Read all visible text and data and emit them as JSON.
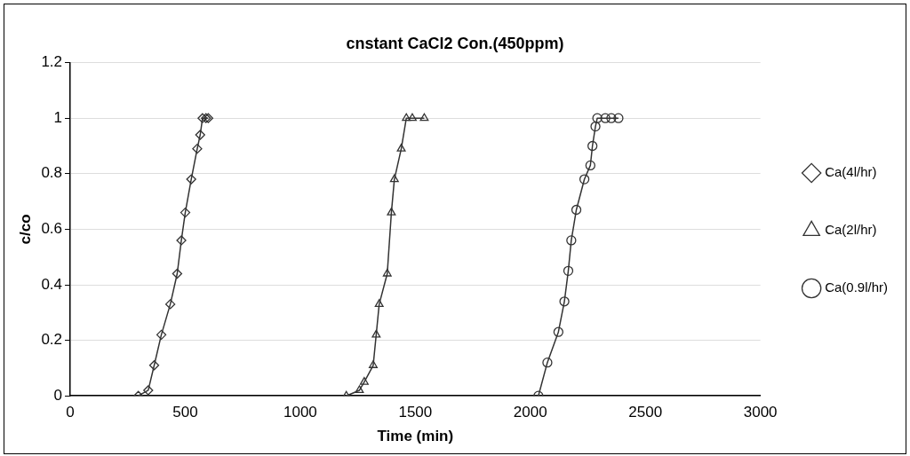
{
  "chart_data": {
    "type": "line",
    "title": "cnstant CaCl2 Con.(450ppm)",
    "xlabel": "Time (min)",
    "ylabel": "c/co",
    "xlim": [
      0,
      3000
    ],
    "xticks": [
      0,
      500,
      1000,
      1500,
      2000,
      2500,
      3000
    ],
    "ylim": [
      0,
      1.2
    ],
    "yticks": [
      0,
      0.2,
      0.4,
      0.6,
      0.8,
      1,
      1.2
    ],
    "grid": "y",
    "legend": "right",
    "series": [
      {
        "name": "Ca(4l/hr)",
        "color": "#333333",
        "marker": "diamond",
        "x": [
          296,
          339,
          365,
          396,
          435,
          465,
          483,
          500,
          526,
          552,
          565,
          575,
          590,
          600
        ],
        "values": [
          0,
          0.02,
          0.11,
          0.22,
          0.33,
          0.44,
          0.56,
          0.66,
          0.78,
          0.89,
          0.94,
          1,
          1,
          1
        ]
      },
      {
        "name": "Ca(2l/hr)",
        "color": "#333333",
        "marker": "triangle",
        "x": [
          1200,
          1257,
          1278,
          1317,
          1330,
          1343,
          1378,
          1396,
          1409,
          1439,
          1461,
          1487,
          1539
        ],
        "values": [
          0,
          0.02,
          0.05,
          0.11,
          0.22,
          0.33,
          0.44,
          0.66,
          0.78,
          0.89,
          1,
          1,
          1
        ]
      },
      {
        "name": "Ca(0.9l/hr)",
        "color": "#333333",
        "marker": "circle",
        "x": [
          2035,
          2074,
          2122,
          2148,
          2165,
          2178,
          2200,
          2235,
          2261,
          2270,
          2283,
          2291,
          2326,
          2352,
          2383
        ],
        "values": [
          0,
          0.12,
          0.23,
          0.34,
          0.45,
          0.56,
          0.67,
          0.78,
          0.83,
          0.9,
          0.97,
          1,
          1,
          1,
          1
        ]
      }
    ]
  }
}
